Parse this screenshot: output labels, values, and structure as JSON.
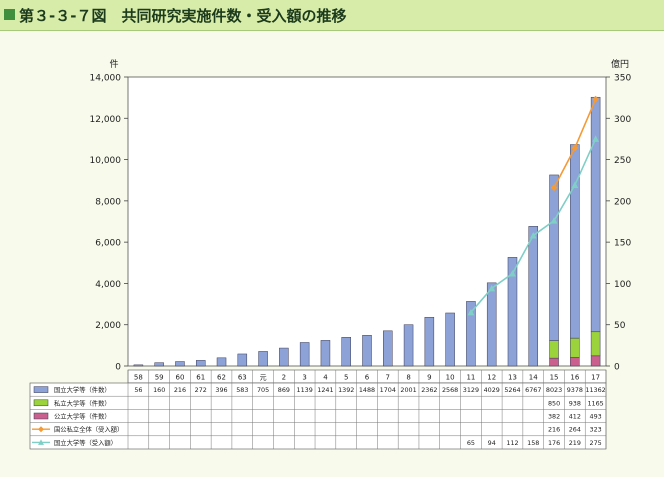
{
  "header": {
    "title": "第３-３-７図　共同研究実施件数・受入額の推移"
  },
  "chart_data": {
    "type": "bar",
    "title": "第３-３-７図　共同研究実施件数・受入額の推移",
    "left_axis_unit": "件",
    "right_axis_unit": "億円",
    "left_ylim": [
      0,
      14000
    ],
    "right_ylim": [
      0,
      350
    ],
    "left_ticks": [
      "0",
      "2,000",
      "4,000",
      "6,000",
      "8,000",
      "10,000",
      "12,000",
      "14,000"
    ],
    "right_ticks": [
      "0",
      "50",
      "100",
      "150",
      "200",
      "250",
      "300",
      "350"
    ],
    "categories": [
      "58",
      "59",
      "60",
      "61",
      "62",
      "63",
      "元",
      "2",
      "3",
      "4",
      "5",
      "6",
      "7",
      "8",
      "9",
      "10",
      "11",
      "12",
      "13",
      "14",
      "15",
      "16",
      "17"
    ],
    "grid": false,
    "series": [
      {
        "name": "国立大学等（件数）",
        "kind": "bar",
        "color": "#8da2d6",
        "values": [
          56,
          160,
          216,
          272,
          396,
          583,
          705,
          869,
          1139,
          1241,
          1392,
          1488,
          1704,
          2001,
          2362,
          2568,
          3129,
          4029,
          5264,
          6767,
          8023,
          9378,
          11362
        ],
        "labels": [
          "56",
          "160",
          "216",
          "272",
          "396",
          "583",
          "705",
          "869",
          "1139",
          "1241",
          "1392",
          "1488",
          "1704",
          "2001",
          "2362",
          "2568",
          "3129",
          "4029",
          "5264",
          "6767",
          "8023",
          "9378",
          "11362"
        ]
      },
      {
        "name": "私立大学等（件数）",
        "kind": "bar",
        "color": "#9bd33d",
        "values": [
          null,
          null,
          null,
          null,
          null,
          null,
          null,
          null,
          null,
          null,
          null,
          null,
          null,
          null,
          null,
          null,
          null,
          null,
          null,
          null,
          850,
          938,
          1165
        ],
        "labels": [
          "",
          "",
          "",
          "",
          "",
          "",
          "",
          "",
          "",
          "",
          "",
          "",
          "",
          "",
          "",
          "",
          "",
          "",
          "",
          "",
          "850",
          "938",
          "1165"
        ]
      },
      {
        "name": "公立大学等（件数）",
        "kind": "bar",
        "color": "#c9608d",
        "values": [
          null,
          null,
          null,
          null,
          null,
          null,
          null,
          null,
          null,
          null,
          null,
          null,
          null,
          null,
          null,
          null,
          null,
          null,
          null,
          null,
          382,
          412,
          493
        ],
        "labels": [
          "",
          "",
          "",
          "",
          "",
          "",
          "",
          "",
          "",
          "",
          "",
          "",
          "",
          "",
          "",
          "",
          "",
          "",
          "",
          "",
          "382",
          "412",
          "493"
        ]
      },
      {
        "name": "国公私立全体（受入額）",
        "kind": "line",
        "axis": "right",
        "color": "#f59a35",
        "values": [
          null,
          null,
          null,
          null,
          null,
          null,
          null,
          null,
          null,
          null,
          null,
          null,
          null,
          null,
          null,
          null,
          null,
          null,
          null,
          null,
          216,
          264,
          323
        ],
        "labels": [
          "",
          "",
          "",
          "",
          "",
          "",
          "",
          "",
          "",
          "",
          "",
          "",
          "",
          "",
          "",
          "",
          "",
          "",
          "",
          "",
          "216",
          "264",
          "323"
        ]
      },
      {
        "name": "国立大学等（受入額）",
        "kind": "line",
        "axis": "right",
        "color": "#7fcfc7",
        "values": [
          null,
          null,
          null,
          null,
          null,
          null,
          null,
          null,
          null,
          null,
          null,
          null,
          null,
          null,
          null,
          null,
          65,
          94,
          112,
          158,
          176,
          219,
          275
        ],
        "labels": [
          "",
          "",
          "",
          "",
          "",
          "",
          "",
          "",
          "",
          "",
          "",
          "",
          "",
          "",
          "",
          "",
          "65",
          "94",
          "112",
          "158",
          "176",
          "219",
          "275"
        ]
      }
    ]
  }
}
